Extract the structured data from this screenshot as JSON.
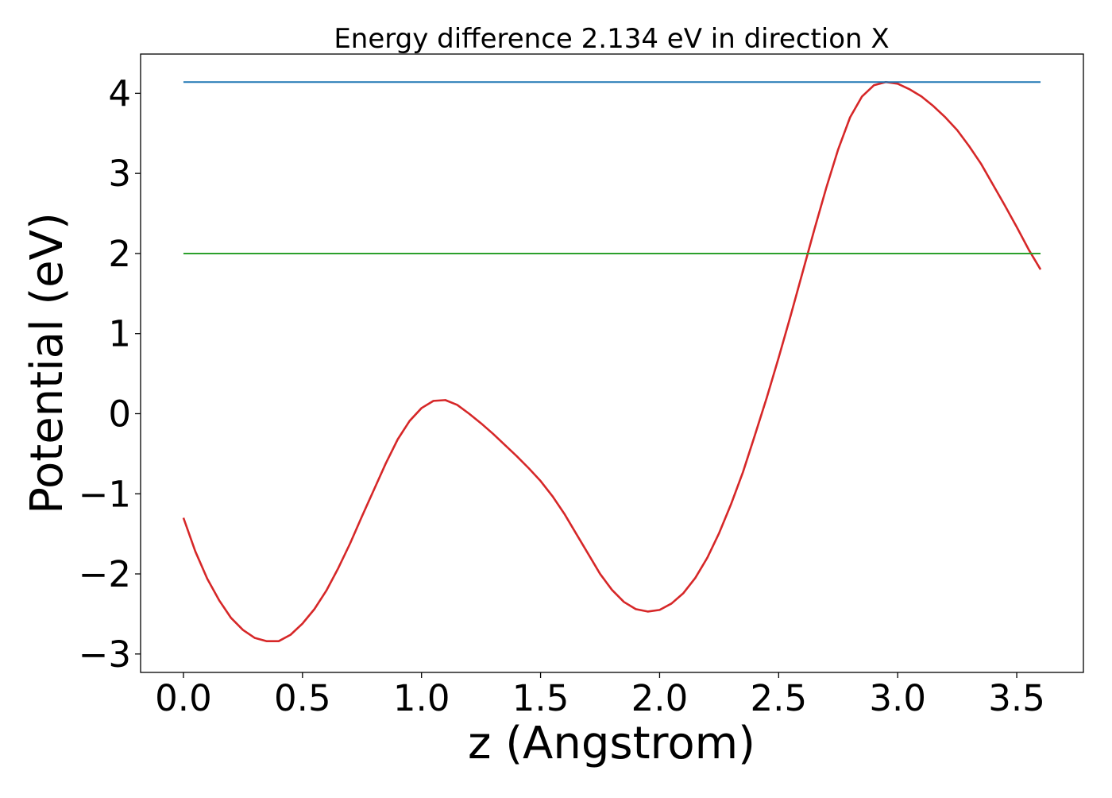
{
  "chart_data": {
    "type": "line",
    "title": "Energy difference 2.134 eV in direction X",
    "xlabel": "z (Angstrom)",
    "ylabel": "Potential (eV)",
    "xlim": [
      -0.18,
      3.78
    ],
    "ylim": [
      -3.23,
      4.49
    ],
    "xticks": [
      0.0,
      0.5,
      1.0,
      1.5,
      2.0,
      2.5,
      3.0,
      3.5
    ],
    "xtick_labels": [
      "0.0",
      "0.5",
      "1.0",
      "1.5",
      "2.0",
      "2.5",
      "3.0",
      "3.5"
    ],
    "yticks": [
      -3,
      -2,
      -1,
      0,
      1,
      2,
      3,
      4
    ],
    "ytick_labels": [
      "−3",
      "−2",
      "−1",
      "0",
      "1",
      "2",
      "3",
      "4"
    ],
    "grid": false,
    "series": [
      {
        "color": "#d62728",
        "x": [
          0.0,
          0.05,
          0.1,
          0.15,
          0.2,
          0.25,
          0.3,
          0.35,
          0.4,
          0.45,
          0.5,
          0.55,
          0.6,
          0.65,
          0.7,
          0.75,
          0.8,
          0.85,
          0.9,
          0.95,
          1.0,
          1.05,
          1.1,
          1.15,
          1.2,
          1.25,
          1.3,
          1.35,
          1.4,
          1.45,
          1.5,
          1.55,
          1.6,
          1.65,
          1.7,
          1.75,
          1.8,
          1.85,
          1.9,
          1.95,
          2.0,
          2.05,
          2.1,
          2.15,
          2.2,
          2.25,
          2.3,
          2.35,
          2.4,
          2.45,
          2.5,
          2.55,
          2.6,
          2.65,
          2.7,
          2.75,
          2.8,
          2.85,
          2.9,
          2.95,
          3.0,
          3.05,
          3.1,
          3.15,
          3.2,
          3.25,
          3.3,
          3.35,
          3.4,
          3.45,
          3.5,
          3.55,
          3.6
        ],
        "y": [
          -1.3,
          -1.72,
          -2.06,
          -2.33,
          -2.55,
          -2.7,
          -2.8,
          -2.84,
          -2.84,
          -2.76,
          -2.62,
          -2.44,
          -2.21,
          -1.93,
          -1.62,
          -1.28,
          -0.95,
          -0.62,
          -0.32,
          -0.09,
          0.07,
          0.16,
          0.17,
          0.11,
          0.0,
          -0.12,
          -0.25,
          -0.39,
          -0.53,
          -0.68,
          -0.84,
          -1.03,
          -1.25,
          -1.5,
          -1.75,
          -2.0,
          -2.2,
          -2.35,
          -2.44,
          -2.47,
          -2.45,
          -2.37,
          -2.24,
          -2.05,
          -1.8,
          -1.49,
          -1.13,
          -0.73,
          -0.27,
          0.2,
          0.7,
          1.22,
          1.76,
          2.3,
          2.82,
          3.3,
          3.7,
          3.96,
          4.1,
          4.14,
          4.12,
          4.05,
          3.96,
          3.84,
          3.7,
          3.54,
          3.34,
          3.12,
          2.86,
          2.6,
          2.33,
          2.05,
          1.8
        ]
      },
      {
        "color": "#1f77b4",
        "x": [
          0.0,
          3.6
        ],
        "y": [
          4.14,
          4.14
        ]
      },
      {
        "color": "#2ca02c",
        "x": [
          0.0,
          3.6
        ],
        "y": [
          2.0,
          2.0
        ]
      }
    ]
  }
}
